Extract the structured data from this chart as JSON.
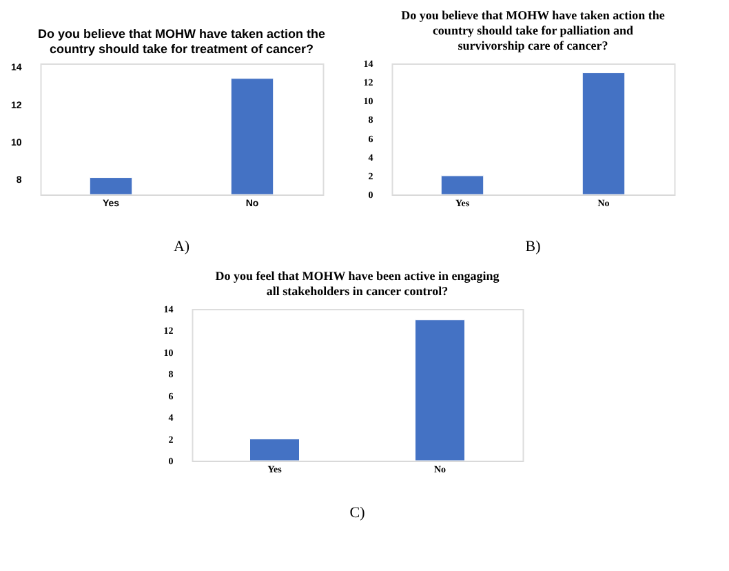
{
  "chart_data": [
    {
      "type": "bar",
      "title": "Do you believe that MOHW have taken action the country should take for treatment of cancer?",
      "categories": [
        "Yes",
        "No"
      ],
      "values": [
        8.1,
        13.4
      ],
      "color": "#4472c4",
      "ylim": [
        7.2,
        14.2
      ],
      "yticks": [
        8,
        10,
        12,
        14
      ],
      "grid": false,
      "annotations": [
        "A)"
      ]
    },
    {
      "type": "bar",
      "title": "Do you believe that MOHW have taken action the country should take for palliation and survivorship care of cancer?",
      "categories": [
        "Yes",
        "No"
      ],
      "values": [
        2,
        13
      ],
      "color": "#4472c4",
      "ylim": [
        0,
        14
      ],
      "yticks": [
        0,
        2,
        4,
        6,
        8,
        10,
        12,
        14
      ],
      "grid": false,
      "annotations": [
        "B)"
      ]
    },
    {
      "type": "bar",
      "title": "Do you feel that MOHW have been active in engaging all stakeholders in cancer control?",
      "categories": [
        "Yes",
        "No"
      ],
      "values": [
        2,
        13
      ],
      "color": "#4472c4",
      "ylim": [
        0,
        14
      ],
      "yticks": [
        0,
        2,
        4,
        6,
        8,
        10,
        12,
        14
      ],
      "grid": false,
      "annotations": [
        "C)"
      ]
    }
  ]
}
